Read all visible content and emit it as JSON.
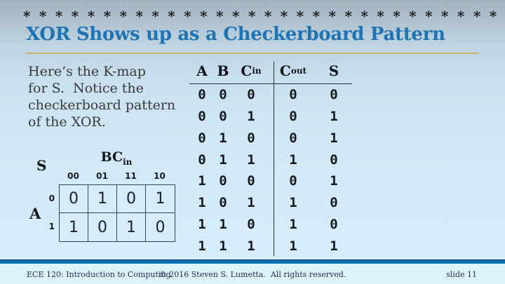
{
  "header": {
    "stars": "* * * * * * * * * * * * * * * * * * * * * * * * * * * * * * * * * *",
    "title": "XOR Shows up as a Checkerboard Pattern"
  },
  "intro": {
    "text": "Here’s the K-map\nfor S.  Notice the\ncheckerboard pattern\nof the XOR."
  },
  "kmap": {
    "output_label": "S",
    "row_group_label": "A",
    "col_group_label": {
      "main": "BC",
      "sub": "in"
    },
    "col_labels": [
      "00",
      "01",
      "11",
      "10"
    ],
    "row_labels": [
      "0",
      "1"
    ],
    "rows": [
      [
        "0",
        "1",
        "0",
        "1"
      ],
      [
        "1",
        "0",
        "1",
        "0"
      ]
    ]
  },
  "truth_table": {
    "columns": [
      {
        "main": "A",
        "sub": ""
      },
      {
        "main": "B",
        "sub": ""
      },
      {
        "main": "C",
        "sub": "in"
      },
      {
        "main": "C",
        "sub": "out"
      },
      {
        "main": "S",
        "sub": ""
      }
    ],
    "rows": [
      [
        "0",
        "0",
        "0",
        "0",
        "0"
      ],
      [
        "0",
        "0",
        "1",
        "0",
        "1"
      ],
      [
        "0",
        "1",
        "0",
        "0",
        "1"
      ],
      [
        "0",
        "1",
        "1",
        "1",
        "0"
      ],
      [
        "1",
        "0",
        "0",
        "0",
        "1"
      ],
      [
        "1",
        "0",
        "1",
        "1",
        "0"
      ],
      [
        "1",
        "1",
        "0",
        "1",
        "0"
      ],
      [
        "1",
        "1",
        "1",
        "1",
        "1"
      ]
    ]
  },
  "footer": {
    "course": "ECE 120: Introduction to Computing",
    "copyright": "© 2016 Steven S. Lumetta.  All rights reserved.",
    "slide": "slide 11"
  },
  "colors": {
    "title_blue": "#1e73b4",
    "gold_rule": "#c9b45f",
    "footer_bar_blue": "#0b72b8",
    "footer_strip": "#def2fc",
    "body_text": "#3a3a3a",
    "table_text": "#14181c",
    "background_top": "#a1b2bd",
    "background_bottom": "#d6eefa"
  }
}
